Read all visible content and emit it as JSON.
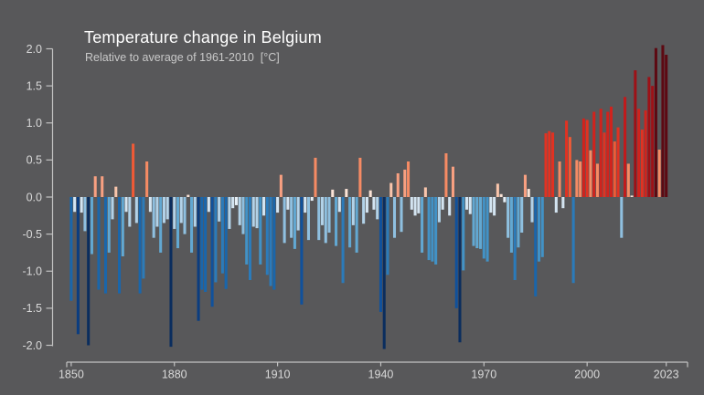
{
  "header": {
    "title": "Temperature change in Belgium",
    "subtitle": "Relative to average of 1961-2010  [°C]"
  },
  "chart_data": {
    "type": "bar",
    "title": "Temperature change in Belgium",
    "subtitle": "Relative to average of 1961-2010 [°C]",
    "unit": "°C",
    "ylabel": "",
    "xlabel": "",
    "ylim": [
      -2.0,
      2.0
    ],
    "grid": false,
    "legend": "none",
    "start_year": 1850,
    "end_year": 2023,
    "x_tick_years": [
      1850,
      1880,
      1910,
      1940,
      1970,
      2000,
      2023
    ],
    "y_ticks": [
      2.0,
      1.5,
      1.0,
      0.5,
      0.0,
      -0.5,
      -1.0,
      -1.5,
      -2.0
    ],
    "values": [
      -1.4,
      -0.2,
      -1.85,
      -0.21,
      -0.46,
      -2.0,
      -0.77,
      0.28,
      -1.25,
      0.28,
      -1.3,
      -0.75,
      -0.3,
      0.14,
      -1.3,
      -0.8,
      -0.2,
      -0.4,
      0.72,
      -0.35,
      -1.3,
      -1.1,
      0.48,
      -0.2,
      -0.55,
      -0.4,
      -0.75,
      -0.35,
      -0.3,
      -2.02,
      -0.43,
      -0.69,
      -0.35,
      -0.5,
      0.03,
      -0.75,
      -0.4,
      -1.67,
      -1.25,
      -1.28,
      -0.2,
      -1.48,
      -1.15,
      -0.33,
      -1.03,
      -1.24,
      -0.43,
      -0.15,
      -0.11,
      -0.38,
      -0.5,
      -0.91,
      -1.12,
      -0.4,
      -0.42,
      -0.91,
      -0.25,
      -1.05,
      -1.2,
      -1.25,
      -0.21,
      0.3,
      -0.62,
      -0.17,
      -0.55,
      -0.7,
      -0.45,
      -1.45,
      -0.21,
      -0.58,
      -0.05,
      0.53,
      -0.58,
      -0.38,
      -0.62,
      -0.48,
      0.1,
      -0.66,
      -0.2,
      -1.16,
      0.11,
      -0.68,
      -0.38,
      -0.75,
      0.53,
      -0.36,
      -0.21,
      0.09,
      -0.17,
      -0.3,
      -1.55,
      -2.05,
      -1.05,
      0.19,
      -0.55,
      0.32,
      -0.47,
      0.37,
      0.48,
      -0.17,
      -0.25,
      -0.22,
      -0.75,
      0.13,
      -0.85,
      -0.87,
      -0.91,
      -0.34,
      -0.17,
      0.59,
      -0.25,
      0.41,
      -1.5,
      -1.96,
      -0.99,
      -0.17,
      -0.23,
      -0.66,
      -0.69,
      -0.7,
      -0.83,
      -0.87,
      -0.21,
      -0.25,
      0.18,
      0.04,
      -0.07,
      -0.55,
      -0.75,
      -1.12,
      -0.68,
      -0.48,
      0.3,
      0.11,
      -0.34,
      -1.34,
      -0.87,
      -0.81,
      0.86,
      0.89,
      0.87,
      -0.21,
      0.48,
      -0.15,
      1.03,
      0.81,
      -1.16,
      0.5,
      0.48,
      1.06,
      1.04,
      0.63,
      1.15,
      0.45,
      1.19,
      0.87,
      1.15,
      1.22,
      0.75,
      0.94,
      -0.55,
      1.35,
      0.45,
      0.02,
      1.71,
      1.19,
      0.91,
      1.17,
      1.62,
      1.5,
      2.01,
      0.64,
      2.05,
      1.92
    ],
    "palette_stops": [
      {
        "min": 1.9,
        "color": "#5d0912"
      },
      {
        "min": 1.48,
        "color": "#9d1117"
      },
      {
        "min": 1.3,
        "color": "#c01a1c"
      },
      {
        "min": 1.05,
        "color": "#d0231d"
      },
      {
        "min": 0.85,
        "color": "#e13222"
      },
      {
        "min": 0.68,
        "color": "#f05a36"
      },
      {
        "min": 0.42,
        "color": "#f68b64"
      },
      {
        "min": 0.25,
        "color": "#f8a081"
      },
      {
        "min": 0.12,
        "color": "#f9c5ab"
      },
      {
        "min": 0.0,
        "color": "#fbe3d6"
      },
      {
        "min": -0.12,
        "color": "#e8f1f8"
      },
      {
        "min": -0.28,
        "color": "#d3e4f1"
      },
      {
        "min": -0.45,
        "color": "#b2d2e8"
      },
      {
        "min": -0.62,
        "color": "#8fc0e0"
      },
      {
        "min": -0.8,
        "color": "#62a8d2"
      },
      {
        "min": -1.0,
        "color": "#4292c6"
      },
      {
        "min": -1.22,
        "color": "#2b7bba"
      },
      {
        "min": -1.42,
        "color": "#1a66ab"
      },
      {
        "min": -1.62,
        "color": "#10519c"
      },
      {
        "min": -1.9,
        "color": "#0b3d80"
      },
      {
        "min": -9.0,
        "color": "#0a2d5e"
      }
    ],
    "colors": {
      "background": "#58585a",
      "axis": "#c3c3c3",
      "tick_label": "#d9d9d9",
      "title": "#ffffff",
      "subtitle": "#c9c9c9"
    }
  }
}
